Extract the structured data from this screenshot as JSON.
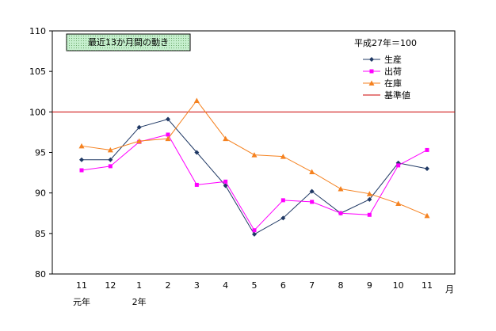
{
  "chart_data": {
    "type": "line",
    "title": "最近13か月間の動き",
    "base_note": "平成27年＝100",
    "x_unit": "月",
    "categories": [
      "11",
      "12",
      "1",
      "2",
      "3",
      "4",
      "5",
      "6",
      "7",
      "8",
      "9",
      "10",
      "11"
    ],
    "year_labels": [
      {
        "index": 0,
        "text": "元年"
      },
      {
        "index": 2,
        "text": "2年"
      }
    ],
    "ylim": [
      80,
      110
    ],
    "yticks": [
      80,
      85,
      90,
      95,
      100,
      105,
      110
    ],
    "grid": false,
    "legend_position": "top-right",
    "series": [
      {
        "name": "生産",
        "color": "#1f3864",
        "marker": "diamond",
        "values": [
          94.1,
          94.1,
          98.1,
          99.1,
          95.0,
          90.9,
          84.9,
          86.9,
          90.2,
          87.5,
          89.2,
          93.7,
          93.0
        ]
      },
      {
        "name": "出荷",
        "color": "#ff00ff",
        "marker": "square",
        "values": [
          92.8,
          93.3,
          96.3,
          97.2,
          91.0,
          91.4,
          85.4,
          89.1,
          88.9,
          87.5,
          87.3,
          93.4,
          95.3
        ]
      },
      {
        "name": "在庫",
        "color": "#f58220",
        "marker": "triangle",
        "values": [
          95.8,
          95.3,
          96.4,
          96.7,
          101.4,
          96.7,
          94.7,
          94.5,
          92.6,
          90.5,
          89.9,
          88.7,
          87.2
        ]
      }
    ],
    "reference_line": {
      "name": "基準値",
      "value": 100,
      "color": "#cc0000"
    }
  }
}
